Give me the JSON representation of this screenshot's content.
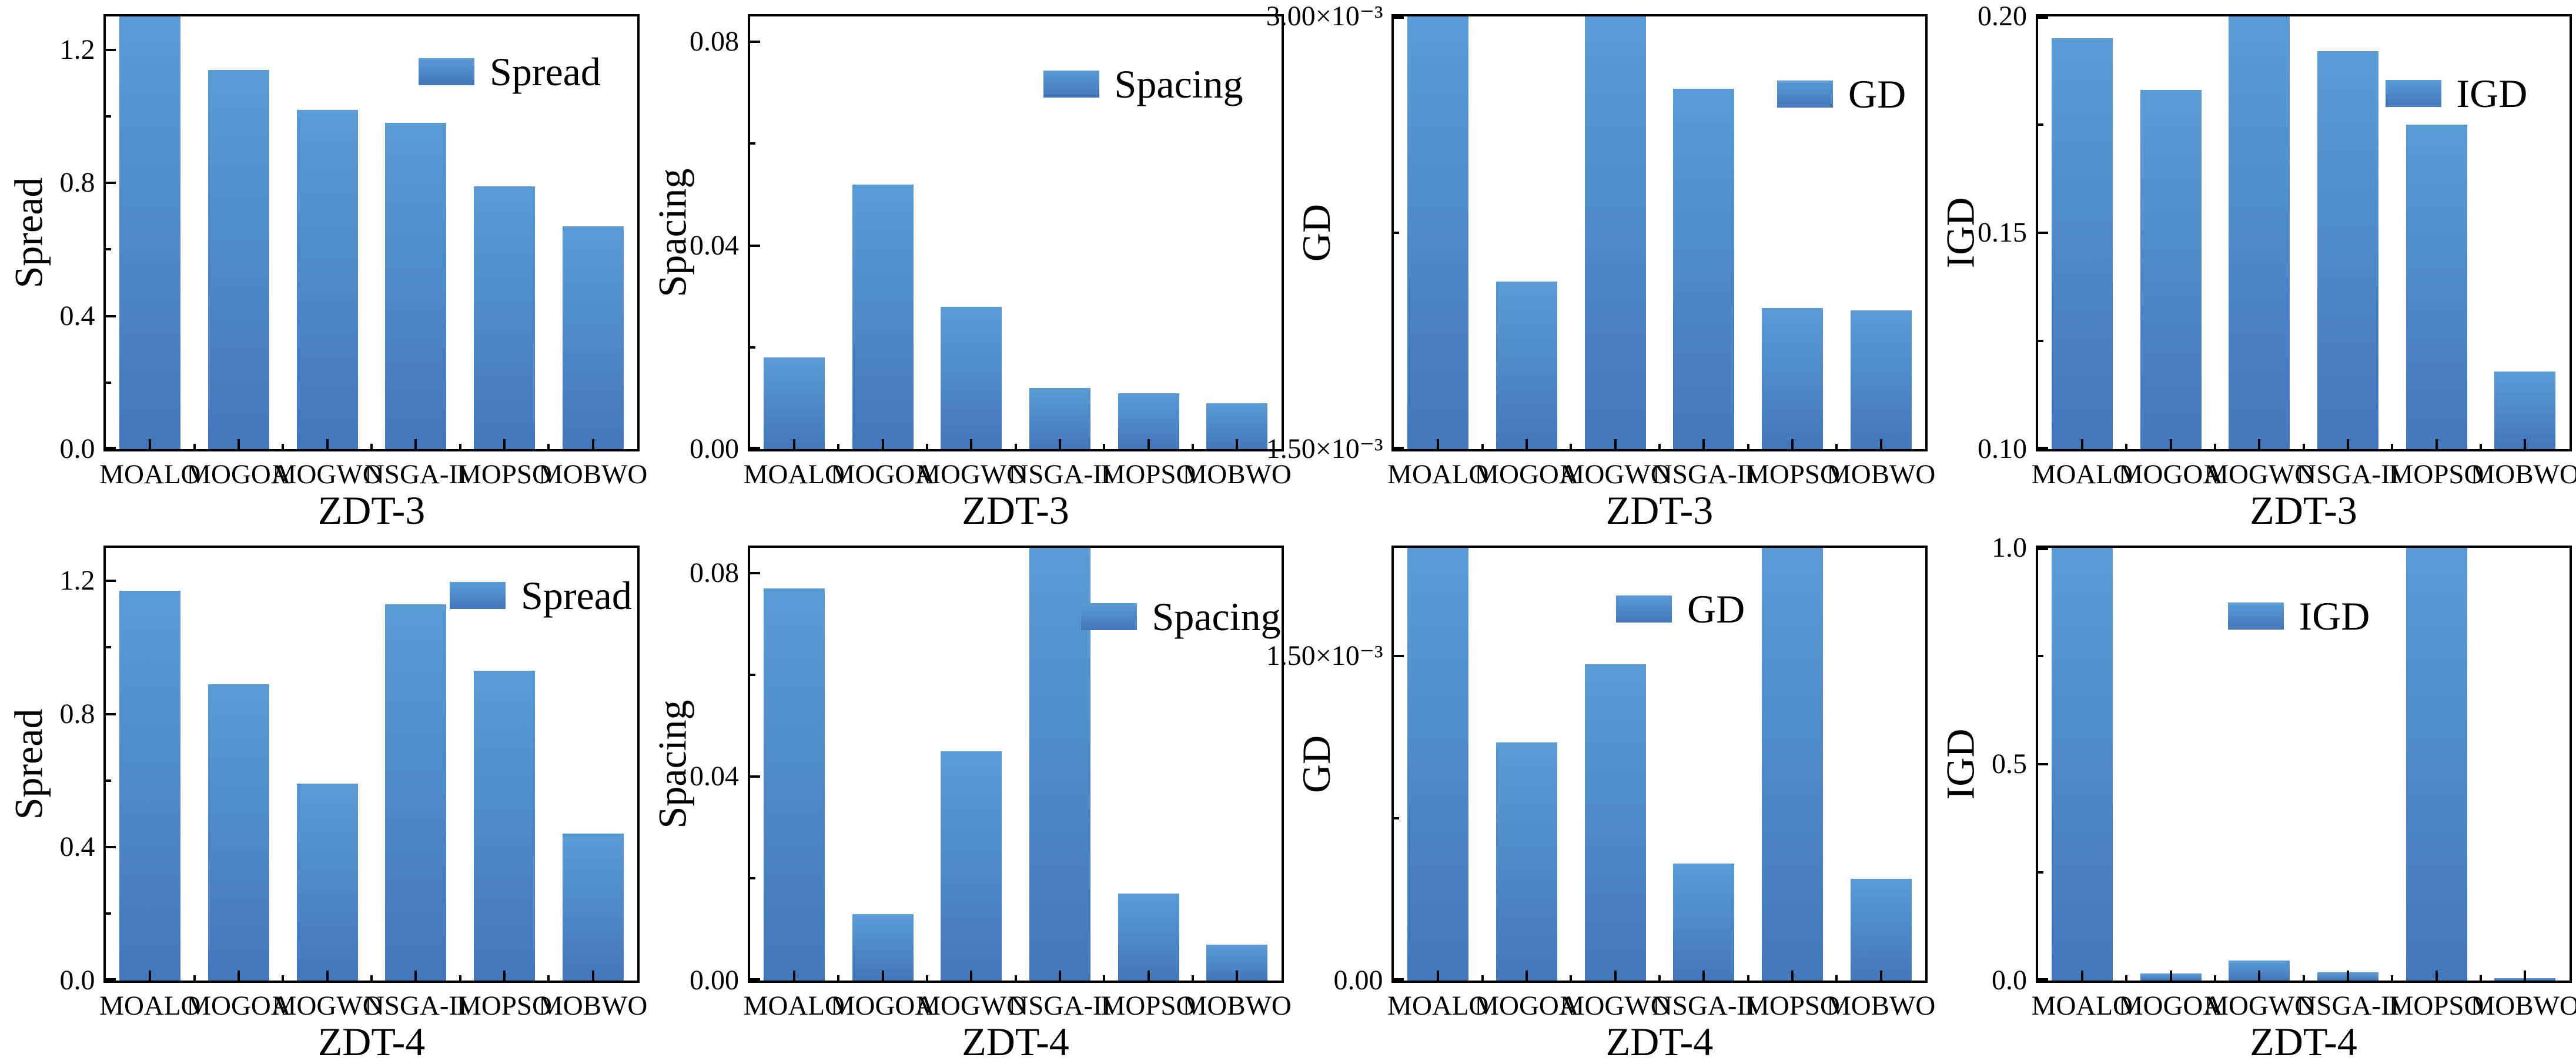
{
  "style": {
    "bar_gradient_top": "#5B9BD5",
    "bar_gradient_bottom": "#4277BB",
    "axis_color": "#000000",
    "text_color": "#000000",
    "background": "#ffffff"
  },
  "chart_data": [
    {
      "type": "bar",
      "metric": "Spread",
      "problem": "ZDT-3",
      "ylabel": "Spread",
      "xlabel": "ZDT-3",
      "legend": "Spread",
      "legend_position": "upper right inside",
      "grid": false,
      "categories": [
        "MOALO",
        "MOGOA",
        "MOGWO",
        "NSGA-II",
        "MOPSO",
        "MOBWO"
      ],
      "values": [
        1.3,
        1.14,
        1.02,
        0.98,
        0.79,
        0.67
      ],
      "ylim": [
        0.0,
        1.3
      ],
      "yticks": [
        {
          "v": 0.0,
          "label": "0.0"
        },
        {
          "v": 0.4,
          "label": "0.4"
        },
        {
          "v": 0.8,
          "label": "0.8"
        },
        {
          "v": 1.2,
          "label": "1.2"
        }
      ],
      "yminor": [
        0.2,
        0.6,
        1.0
      ],
      "legend_pos": {
        "left": 712,
        "top": 88
      }
    },
    {
      "type": "bar",
      "metric": "Spacing",
      "problem": "ZDT-3",
      "ylabel": "Spacing",
      "xlabel": "ZDT-3",
      "legend": "Spacing",
      "legend_position": "upper right inside",
      "grid": false,
      "categories": [
        "MOALO",
        "MOGOA",
        "MOGWO",
        "NSGA-II",
        "MOPSO",
        "MOBWO"
      ],
      "values": [
        0.018,
        0.052,
        0.028,
        0.012,
        0.011,
        0.009
      ],
      "ylim": [
        0.0,
        0.085
      ],
      "yticks": [
        {
          "v": 0.0,
          "label": "0.00"
        },
        {
          "v": 0.04,
          "label": "0.04"
        },
        {
          "v": 0.08,
          "label": "0.08"
        }
      ],
      "yminor": [
        0.02,
        0.06
      ],
      "legend_pos": {
        "left": 679,
        "top": 109
      }
    },
    {
      "type": "bar",
      "metric": "GD",
      "problem": "ZDT-3",
      "ylabel": "GD",
      "xlabel": "ZDT-3",
      "legend": "GD",
      "legend_position": "upper right inside",
      "grid": false,
      "categories": [
        "MOALO",
        "MOGOA",
        "MOGWO",
        "NSGA-II",
        "MOPSO",
        "MOBWO"
      ],
      "values": [
        0.003,
        0.00208,
        0.003,
        0.00275,
        0.00199,
        0.00198
      ],
      "ylim": [
        0.0015,
        0.003
      ],
      "yticks": [
        {
          "v": 0.0015,
          "label": "1.50×10⁻³"
        },
        {
          "v": 0.003,
          "label": "3.00×10⁻³"
        }
      ],
      "yminor": [
        0.00225
      ],
      "legend_pos": {
        "left": 832,
        "top": 126
      }
    },
    {
      "type": "bar",
      "metric": "IGD",
      "problem": "ZDT-3",
      "ylabel": "IGD",
      "xlabel": "ZDT-3",
      "legend": "IGD",
      "legend_position": "upper right inside",
      "grid": false,
      "categories": [
        "MOALO",
        "MOGOA",
        "MOGWO",
        "NSGA-II",
        "MOPSO",
        "MOBWO"
      ],
      "values": [
        0.195,
        0.183,
        0.2,
        0.192,
        0.175,
        0.118
      ],
      "ylim": [
        0.1,
        0.2
      ],
      "yticks": [
        {
          "v": 0.1,
          "label": "0.10"
        },
        {
          "v": 0.15,
          "label": "0.15"
        },
        {
          "v": 0.2,
          "label": "0.20"
        }
      ],
      "yminor": [
        0.125,
        0.175
      ],
      "legend_pos": {
        "left": 771,
        "top": 125
      }
    },
    {
      "type": "bar",
      "metric": "Spread",
      "problem": "ZDT-4",
      "ylabel": "Spread",
      "xlabel": "ZDT-4",
      "legend": "Spread",
      "legend_position": "upper right inside",
      "grid": false,
      "categories": [
        "MOALO",
        "MOGOA",
        "MOGWO",
        "NSGA-II",
        "MOPSO",
        "MOBWO"
      ],
      "values": [
        1.17,
        0.89,
        0.59,
        1.13,
        0.93,
        0.44
      ],
      "ylim": [
        0.0,
        1.3
      ],
      "yticks": [
        {
          "v": 0.0,
          "label": "0.0"
        },
        {
          "v": 0.4,
          "label": "0.4"
        },
        {
          "v": 0.8,
          "label": "0.8"
        },
        {
          "v": 1.2,
          "label": "1.2"
        }
      ],
      "yminor": [
        0.2,
        0.6,
        1.0
      ],
      "legend_pos": {
        "left": 765,
        "top": 75
      }
    },
    {
      "type": "bar",
      "metric": "Spacing",
      "problem": "ZDT-4",
      "ylabel": "Spacing",
      "xlabel": "ZDT-4",
      "legend": "Spacing",
      "legend_position": "upper right inside",
      "grid": false,
      "categories": [
        "MOALO",
        "MOGOA",
        "MOGWO",
        "NSGA-II",
        "MOPSO",
        "MOBWO"
      ],
      "values": [
        0.077,
        0.013,
        0.045,
        0.085,
        0.017,
        0.007
      ],
      "ylim": [
        0.0,
        0.085
      ],
      "yticks": [
        {
          "v": 0.0,
          "label": "0.00"
        },
        {
          "v": 0.04,
          "label": "0.04"
        },
        {
          "v": 0.08,
          "label": "0.08"
        }
      ],
      "yminor": [
        0.02,
        0.06
      ],
      "legend_pos": {
        "left": 743,
        "top": 111
      }
    },
    {
      "type": "bar",
      "metric": "GD",
      "problem": "ZDT-4",
      "ylabel": "GD",
      "xlabel": "ZDT-4",
      "legend": "GD",
      "legend_position": "upper center inside",
      "grid": false,
      "categories": [
        "MOALO",
        "MOGOA",
        "MOGWO",
        "NSGA-II",
        "MOPSO",
        "MOBWO"
      ],
      "values": [
        0.002,
        0.0011,
        0.00146,
        0.00054,
        0.002,
        0.00047
      ],
      "ylim": [
        0.0,
        0.002
      ],
      "yticks": [
        {
          "v": 0.0,
          "label": "0.00"
        },
        {
          "v": 0.0015,
          "label": "1.50×10⁻³"
        }
      ],
      "yminor": [
        0.00075
      ],
      "legend_pos": {
        "left": 558,
        "top": 98
      }
    },
    {
      "type": "bar",
      "metric": "IGD",
      "problem": "ZDT-4",
      "ylabel": "IGD",
      "xlabel": "ZDT-4",
      "legend": "IGD",
      "legend_position": "upper center inside",
      "grid": false,
      "categories": [
        "MOALO",
        "MOGOA",
        "MOGWO",
        "NSGA-II",
        "MOPSO",
        "MOBWO"
      ],
      "values": [
        1.0,
        0.015,
        0.045,
        0.018,
        1.0,
        0.005
      ],
      "ylim": [
        0.0,
        1.0
      ],
      "yticks": [
        {
          "v": 0.0,
          "label": "0.0"
        },
        {
          "v": 0.5,
          "label": "0.5"
        },
        {
          "v": 1.0,
          "label": "1.0"
        }
      ],
      "yminor": [
        0.25,
        0.75
      ],
      "legend_pos": {
        "left": 503,
        "top": 110
      }
    }
  ]
}
